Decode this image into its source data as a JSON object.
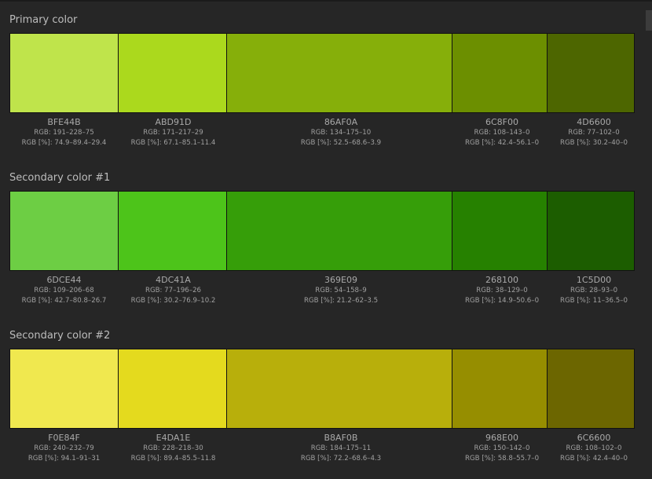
{
  "sections": [
    {
      "title": "Primary color",
      "colors": [
        {
          "hex": "BFE44B",
          "rgb": "RGB: 191–228–75",
          "pct": "RGB [%]: 74.9–89.4–29.4",
          "swatch": "#BFE44B"
        },
        {
          "hex": "ABD91D",
          "rgb": "RGB: 171–217–29",
          "pct": "RGB [%]: 67.1–85.1–11.4",
          "swatch": "#ABD91D"
        },
        {
          "hex": "86AF0A",
          "rgb": "RGB: 134–175–10",
          "pct": "RGB [%]: 52.5–68.6–3.9",
          "swatch": "#86AF0A"
        },
        {
          "hex": "6C8F00",
          "rgb": "RGB: 108–143–0",
          "pct": "RGB [%]: 42.4–56.1–0",
          "swatch": "#6C8F00"
        },
        {
          "hex": "4D6600",
          "rgb": "RGB: 77–102–0",
          "pct": "RGB [%]: 30.2–40–0",
          "swatch": "#4D6600"
        }
      ]
    },
    {
      "title": "Secondary color #1",
      "colors": [
        {
          "hex": "6DCE44",
          "rgb": "RGB: 109–206–68",
          "pct": "RGB [%]: 42.7–80.8–26.7",
          "swatch": "#6DCE44"
        },
        {
          "hex": "4DC41A",
          "rgb": "RGB: 77–196–26",
          "pct": "RGB [%]: 30.2–76.9–10.2",
          "swatch": "#4DC41A"
        },
        {
          "hex": "369E09",
          "rgb": "RGB: 54–158–9",
          "pct": "RGB [%]: 21.2–62–3.5",
          "swatch": "#369E09"
        },
        {
          "hex": "268100",
          "rgb": "RGB: 38–129–0",
          "pct": "RGB [%]: 14.9–50.6–0",
          "swatch": "#268100"
        },
        {
          "hex": "1C5D00",
          "rgb": "RGB: 28–93–0",
          "pct": "RGB [%]: 11–36.5–0",
          "swatch": "#1C5D00"
        }
      ]
    },
    {
      "title": "Secondary color #2",
      "colors": [
        {
          "hex": "F0E84F",
          "rgb": "RGB: 240–232–79",
          "pct": "RGB [%]: 94.1–91–31",
          "swatch": "#F0E84F"
        },
        {
          "hex": "E4DA1E",
          "rgb": "RGB: 228–218–30",
          "pct": "RGB [%]: 89.4–85.5–11.8",
          "swatch": "#E4DA1E"
        },
        {
          "hex": "B8AF0B",
          "rgb": "RGB: 184–175–11",
          "pct": "RGB [%]: 72.2–68.6–4.3",
          "swatch": "#B8AF0B"
        },
        {
          "hex": "968E00",
          "rgb": "RGB: 150–142–0",
          "pct": "RGB [%]: 58.8–55.7–0",
          "swatch": "#968E00"
        },
        {
          "hex": "6C6600",
          "rgb": "RGB: 108–102–0",
          "pct": "RGB [%]: 42.4–40–0",
          "swatch": "#6C6600"
        }
      ]
    }
  ]
}
